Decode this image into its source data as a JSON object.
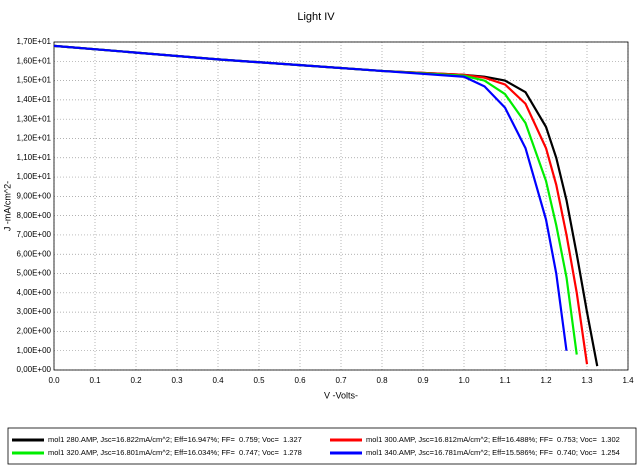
{
  "chart_data": {
    "type": "line",
    "title": "Light IV",
    "x_label": "V -Volts-",
    "y_label": "J -mA/cm^2-",
    "x": [
      0,
      0.2,
      0.4,
      0.6,
      0.8,
      1.0,
      1.05,
      1.1,
      1.15,
      1.2,
      1.225,
      1.25,
      1.275,
      1.3,
      1.325
    ],
    "series": [
      {
        "name": "mol1 280.AMP, Jsc=16.822mA/cm^2; Eff=16.947%; FF=  0.759; Voc=  1.327",
        "color": "#000000",
        "values": [
          16.8,
          16.45,
          16.1,
          15.8,
          15.5,
          15.3,
          15.2,
          15.0,
          14.4,
          12.6,
          11.0,
          8.8,
          6.0,
          3.0,
          0.2
        ]
      },
      {
        "name": "mol1 300.AMP, Jsc=16.812mA/cm^2; Eff=16.488%; FF=  0.753; Voc=  1.302",
        "color": "#ff0000",
        "values": [
          16.8,
          16.45,
          16.1,
          15.8,
          15.5,
          15.3,
          15.15,
          14.8,
          13.8,
          11.5,
          9.6,
          7.0,
          4.0,
          0.3,
          null
        ]
      },
      {
        "name": "mol1 320.AMP, Jsc=16.801mA/cm^2; Eff=16.034%; FF=  0.747; Voc=  1.278",
        "color": "#00ee00",
        "values": [
          16.8,
          16.45,
          16.1,
          15.8,
          15.5,
          15.25,
          15.0,
          14.3,
          12.8,
          9.8,
          7.5,
          4.8,
          0.8,
          null,
          null
        ]
      },
      {
        "name": "mol1 340.AMP, Jsc=16.781mA/cm^2; Eff=15.586%; FF=  0.740; Voc=  1.254",
        "color": "#0000ff",
        "values": [
          16.8,
          16.45,
          16.1,
          15.8,
          15.5,
          15.2,
          14.7,
          13.6,
          11.5,
          7.8,
          5.0,
          1.0,
          null,
          null,
          null
        ]
      }
    ],
    "xlim": [
      0,
      1.4
    ],
    "xticks": [
      {
        "value": 0,
        "label": "0.0"
      },
      0.1,
      0.2,
      0.3,
      0.4,
      0.5,
      0.6,
      0.7,
      0.8,
      0.9,
      {
        "value": 1,
        "label": "1.0"
      },
      1.1,
      1.2,
      1.3,
      1.4
    ],
    "ylim": [
      0,
      17
    ],
    "yticks": [
      {
        "value": 0,
        "label": "0,00E+00"
      },
      {
        "value": 1,
        "label": "1,00E+00"
      },
      {
        "value": 2,
        "label": "2,00E+00"
      },
      {
        "value": 3,
        "label": "3,00E+00"
      },
      {
        "value": 4,
        "label": "4,00E+00"
      },
      {
        "value": 5,
        "label": "5,00E+00"
      },
      {
        "value": 6,
        "label": "6,00E+00"
      },
      {
        "value": 7,
        "label": "7,00E+00"
      },
      {
        "value": 8,
        "label": "8,00E+00"
      },
      {
        "value": 9,
        "label": "9,00E+00"
      },
      {
        "value": 10,
        "label": "1,00E+01"
      },
      {
        "value": 11,
        "label": "1,10E+01"
      },
      {
        "value": 12,
        "label": "1,20E+01"
      },
      {
        "value": 13,
        "label": "1,30E+01"
      },
      {
        "value": 14,
        "label": "1,40E+01"
      },
      {
        "value": 15,
        "label": "1,50E+01"
      },
      {
        "value": 16,
        "label": "1,60E+01"
      },
      {
        "value": 17,
        "label": "1,70E+01"
      }
    ],
    "grid": true,
    "legend": "bottom"
  }
}
